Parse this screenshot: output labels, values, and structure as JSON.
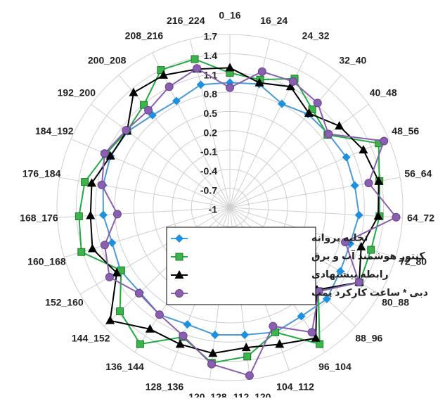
{
  "chart_data": {
    "type": "radar",
    "categories": [
      "0_16",
      "16_24",
      "24_32",
      "32_40",
      "40_48",
      "48_56",
      "56_64",
      "64_72",
      "72_80",
      "80_88",
      "88_96",
      "96_104",
      "104_112",
      "112_120",
      "120_128",
      "128_136",
      "136_144",
      "144_152",
      "152_160",
      "160_168",
      "168_176",
      "176_184",
      "184_192",
      "192_200",
      "200_208",
      "208_216",
      "216_224"
    ],
    "ylim": [
      -1,
      1.7
    ],
    "yticks": [
      -1,
      -0.7,
      -0.4,
      -0.1,
      0.2,
      0.5,
      0.8,
      1.1,
      1.4,
      1.7
    ],
    "grid": true,
    "legend": "center",
    "series": [
      {
        "name": "تخلیه پروانه",
        "color": "#4a9ad8",
        "marker": "diamond",
        "values": [
          0.95,
          0.98,
          0.81,
          0.9,
          0.92,
          0.98,
          0.98,
          1.02,
          0.96,
          0.99,
          1.08,
          1.03,
          1.07,
          1.0,
          1.0,
          0.94,
          1.0,
          0.93,
          0.97,
          0.92,
          0.98,
          1.01,
          1.03,
          0.99,
          0.88,
          0.86,
          0.97
        ]
      },
      {
        "name": "کنتور هوشمند آب و برق",
        "color": "#22aa44",
        "marker": "square",
        "values": [
          1.1,
          1.05,
          1.25,
          1.0,
          0.9,
          1.53,
          1.37,
          1.34,
          1.3,
          1.34,
          0.9,
          1.55,
          1.07,
          1.34,
          1.44,
          1.15,
          1.55,
          1.36,
          0.96,
          1.42,
          1.36,
          1.3,
          1.11,
          1.0,
          1.09,
          1.4,
          1.38
        ]
      },
      {
        "name": "رابطه پیشنهادی",
        "color": "#000000",
        "marker": "triangle",
        "values": [
          1.18,
          1.0,
          1.11,
          0.92,
          1.13,
          1.27,
          1.36,
          1.32,
          1.14,
          1.33,
          0.87,
          1.44,
          1.27,
          1.2,
          1.29,
          1.27,
          1.27,
          1.57,
          1.04,
          1.24,
          1.18,
          1.19,
          1.03,
          1.0,
          1.34,
          1.31,
          1.22
        ]
      },
      {
        "name": "دبی * ساعت کارکرد پمپ",
        "color": "#8a5fb0",
        "marker": "circle",
        "values": [
          0.87,
          1.18,
          1.2,
          1.13,
          0.92,
          1.62,
          1.2,
          1.6,
          0.88,
          1.33,
          0.91,
          1.33,
          0.97,
          1.64,
          1.46,
          1.13,
          1.0,
          0.95,
          1.17,
          1.04,
          0.76,
          1.03,
          1.13,
          1.02,
          0.98,
          1.11,
          1.23
        ]
      }
    ]
  }
}
